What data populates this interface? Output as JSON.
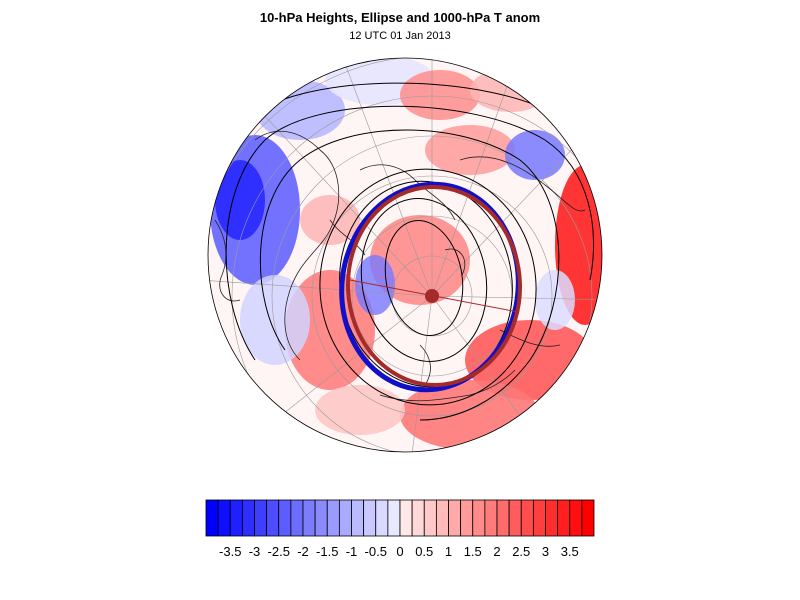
{
  "title": "10-hPa Heights, Ellipse and 1000-hPa T anom",
  "subtitle": "12 UTC 01 Jan 2013",
  "colorbar": {
    "tick_labels": [
      "-3.5",
      "-3",
      "-2.5",
      "-2",
      "-1.5",
      "-1",
      "-0.5",
      "0",
      "0.5",
      "1",
      "1.5",
      "2",
      "2.5",
      "3",
      "3.5"
    ],
    "min": -4.0,
    "max": 4.0,
    "step": 0.25,
    "negative_color": "#0000ff",
    "positive_color": "#ff0000"
  },
  "colors": {
    "ellipse_blue": "#1010c8",
    "ellipse_red": "#a52a2a",
    "contour": "#000000",
    "coast": "#222222"
  }
}
